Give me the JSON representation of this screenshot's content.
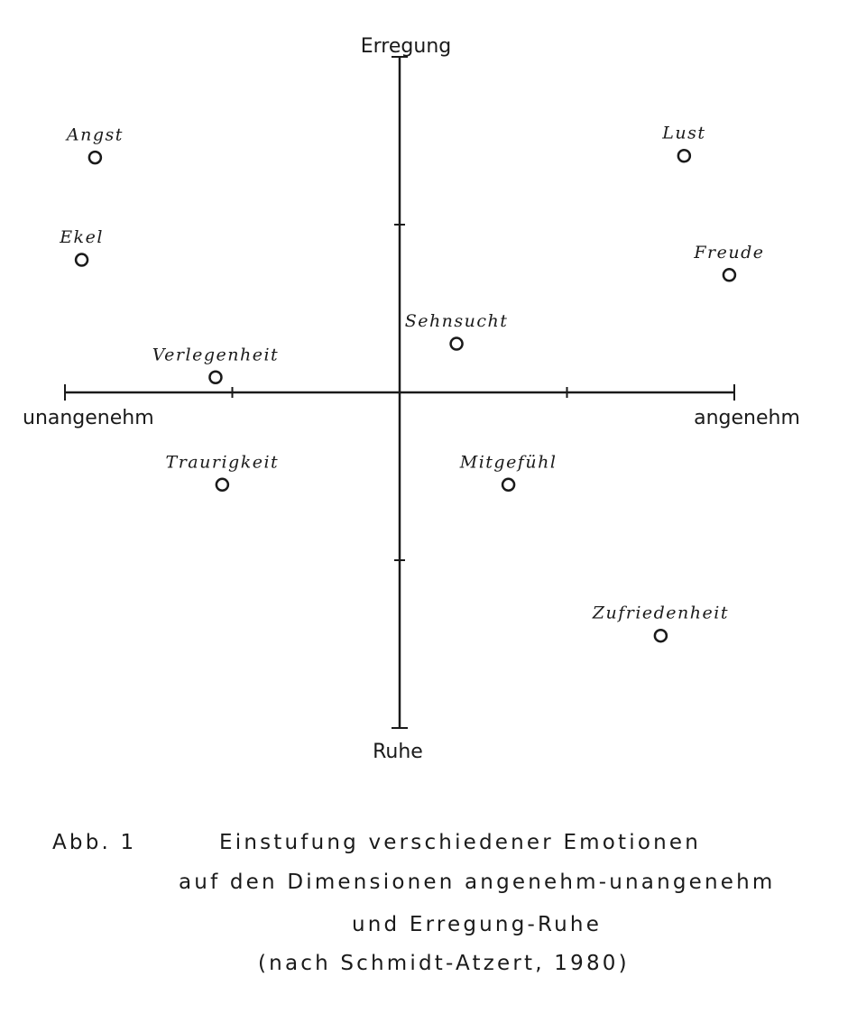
{
  "chart_data": {
    "type": "scatter",
    "title": "",
    "xlabel_negative": "unangenehm",
    "xlabel_positive": "angenehm",
    "ylabel_positive": "Erregung",
    "ylabel_negative": "Ruhe",
    "xlim": [
      -2,
      2
    ],
    "ylim": [
      -2,
      2
    ],
    "grid": false,
    "points": [
      {
        "label": "Angst",
        "x": -1.82,
        "y": 1.4
      },
      {
        "label": "Lust",
        "x": 1.7,
        "y": 1.41
      },
      {
        "label": "Ekel",
        "x": -1.9,
        "y": 0.79
      },
      {
        "label": "Freude",
        "x": 1.97,
        "y": 0.7
      },
      {
        "label": "Sehnsucht",
        "x": 0.34,
        "y": 0.29
      },
      {
        "label": "Verlegenheit",
        "x": -1.1,
        "y": 0.09
      },
      {
        "label": "Traurigkeit",
        "x": -1.06,
        "y": -0.55
      },
      {
        "label": "Mitgefühl",
        "x": 0.65,
        "y": -0.55
      },
      {
        "label": "Zufriedenheit",
        "x": 1.56,
        "y": -1.45
      }
    ]
  },
  "caption": {
    "label": "Abb. 1",
    "lines": [
      "Einstufung verschiedener Emotionen",
      "auf den Dimensionen angenehm-unangenehm",
      "und Erregung-Ruhe",
      "(nach Schmidt-Atzert, 1980)"
    ]
  }
}
